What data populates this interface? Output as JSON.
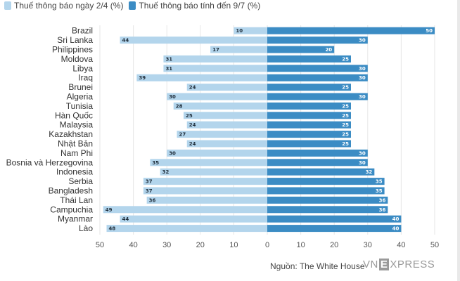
{
  "legend": {
    "left_label": "Thuế thông báo ngày 2/4 (%)",
    "right_label": "Thuế thông báo tính đến 9/7 (%)"
  },
  "colors": {
    "left": "#b3d5ec",
    "right": "#3b8cc4",
    "left_text": "#1f2d3a",
    "right_text": "#ffffff"
  },
  "source": "Nguồn: The White House",
  "logo": {
    "pre": "VN",
    "box": "E",
    "post": "XPRESS"
  },
  "chart_data": {
    "type": "bar",
    "orientation": "horizontal-diverging",
    "categories": [
      "Brazil",
      "Sri Lanka",
      "Philippines",
      "Moldova",
      "Libya",
      "Iraq",
      "Brunei",
      "Algeria",
      "Tunisia",
      "Hàn Quốc",
      "Malaysia",
      "Kazakhstan",
      "Nhật Bản",
      "Nam Phi",
      "Bosnia và Herzegovina",
      "Indonesia",
      "Serbia",
      "Bangladesh",
      "Thái Lan",
      "Campuchia",
      "Myanmar",
      "Lào"
    ],
    "series": [
      {
        "name": "Thuế thông báo ngày 2/4 (%)",
        "side": "left",
        "values": [
          10,
          44,
          17,
          31,
          31,
          39,
          24,
          30,
          28,
          25,
          24,
          27,
          24,
          30,
          35,
          32,
          37,
          37,
          36,
          49,
          44,
          48
        ]
      },
      {
        "name": "Thuế thông báo tính đến 9/7 (%)",
        "side": "right",
        "values": [
          50,
          30,
          20,
          25,
          30,
          30,
          25,
          30,
          25,
          25,
          25,
          25,
          25,
          30,
          30,
          32,
          35,
          35,
          36,
          36,
          40,
          40
        ]
      }
    ],
    "xlim": [
      -50,
      50
    ],
    "xticks": [
      50,
      40,
      30,
      20,
      10,
      0,
      10,
      20,
      30,
      40,
      50
    ],
    "grid": true
  }
}
